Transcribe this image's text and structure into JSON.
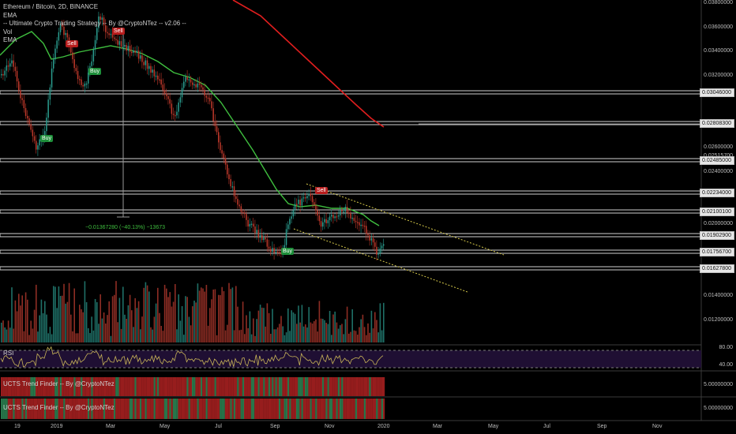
{
  "legend": {
    "symbol": "Ethereum / Bitcoin, 2D, BINANCE",
    "ema1": "EMA",
    "strategy": "-- Ultimate Crypto Trading Strategy -- By @CryptoNTez -- v2.06 --",
    "vol": "Vol",
    "ema2": "EMA"
  },
  "panes": {
    "rsi_title": "RSI",
    "trend1_title": "UCTS Trend Finder -- By @CryptoNTez",
    "trend2_title": "UCTS Trend Finder -- By @CryptoNTez"
  },
  "price_levels": [
    "0.03046000",
    "0.02808300",
    "0.02485000",
    "0.02234000",
    "0.02100100",
    "0.01902900",
    "0.01756700",
    "0.01627800"
  ],
  "price_axis": [
    "0.03800000",
    "0.03600000",
    "0.03400000",
    "0.03200000",
    "0.02600000",
    "0.02515700",
    "0.02400000",
    "0.02000000",
    "0.01400000",
    "0.01200000"
  ],
  "rsi_axis": [
    "80.00",
    "40.00"
  ],
  "trend_axis": [
    "5.00000000",
    "5.00000000"
  ],
  "time_axis": [
    "19",
    "2019",
    "Mar",
    "May",
    "Jul",
    "Sep",
    "Nov",
    "2020",
    "Mar",
    "May",
    "Jul",
    "Sep",
    "Nov"
  ],
  "annotations": {
    "buy": [
      "Buy",
      "Buy",
      "Buy"
    ],
    "sell": [
      "Sell",
      "Sell",
      "Sell"
    ]
  },
  "measure_text": "−0.01367280 (−40.13%) −13673",
  "colors": {
    "up": "#2a9d8f",
    "down": "#c0392b",
    "ema_fast": "#3fbf3f",
    "ema_slow": "#e01e1e",
    "channel": "#d6c94a"
  }
}
